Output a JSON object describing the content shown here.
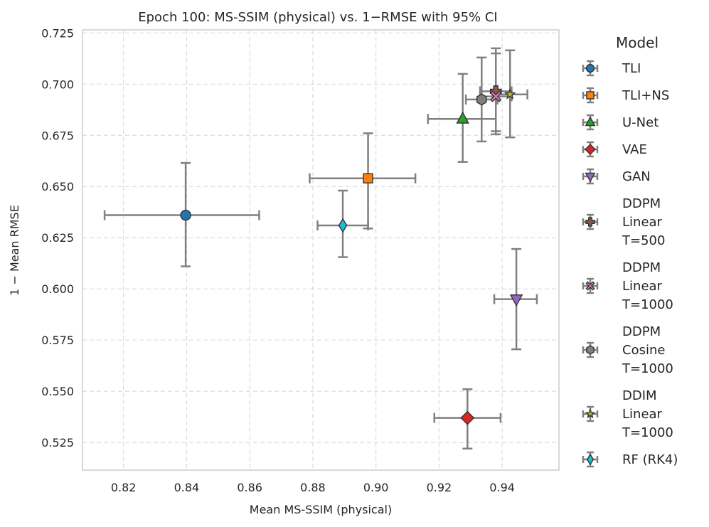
{
  "chart_data": {
    "type": "scatter",
    "title": "Epoch 100: MS-SSIM (physical) vs. 1−RMSE with 95% CI",
    "xlabel": "Mean MS-SSIM (physical)",
    "ylabel": "1 − Mean RMSE",
    "xlim": [
      0.807,
      0.958
    ],
    "ylim": [
      0.5115,
      0.7265
    ],
    "xticks": [
      0.82,
      0.84,
      0.86,
      0.88,
      0.9,
      0.92,
      0.94
    ],
    "xtick_labels": [
      "0.82",
      "0.84",
      "0.86",
      "0.88",
      "0.90",
      "0.92",
      "0.94"
    ],
    "yticks": [
      0.525,
      0.55,
      0.575,
      0.6,
      0.625,
      0.65,
      0.675,
      0.7,
      0.725
    ],
    "ytick_labels": [
      "0.525",
      "0.550",
      "0.575",
      "0.600",
      "0.625",
      "0.650",
      "0.675",
      "0.700",
      "0.725"
    ],
    "grid": true,
    "legend_title": "Model",
    "legend_position": "outside-right",
    "errorbar_color": "#808080",
    "series": [
      {
        "name": "TLI",
        "label_lines": [
          "TLI"
        ],
        "marker": "circle",
        "color": "#1f77b4",
        "x": 0.8397,
        "y": 0.636,
        "x_err": [
          0.814,
          0.863
        ],
        "y_err": [
          0.611,
          0.6615
        ]
      },
      {
        "name": "TLI+NS",
        "label_lines": [
          "TLI+NS"
        ],
        "marker": "square",
        "color": "#ff7f0e",
        "x": 0.8975,
        "y": 0.654,
        "x_err": [
          0.879,
          0.9125
        ],
        "y_err": [
          0.6295,
          0.676
        ]
      },
      {
        "name": "U-Net",
        "label_lines": [
          "U-Net"
        ],
        "marker": "triangle-up",
        "color": "#2ca02c",
        "x": 0.9275,
        "y": 0.683,
        "x_err": [
          0.9165,
          0.938
        ],
        "y_err": [
          0.662,
          0.705
        ]
      },
      {
        "name": "VAE",
        "label_lines": [
          "VAE"
        ],
        "marker": "diamond",
        "color": "#d62728",
        "x": 0.929,
        "y": 0.537,
        "x_err": [
          0.9185,
          0.9395
        ],
        "y_err": [
          0.522,
          0.551
        ]
      },
      {
        "name": "GAN",
        "label_lines": [
          "GAN"
        ],
        "marker": "triangle-down",
        "color": "#9467bd",
        "x": 0.9445,
        "y": 0.595,
        "x_err": [
          0.9375,
          0.951
        ],
        "y_err": [
          0.5705,
          0.6195
        ]
      },
      {
        "name": "DDPM Linear T=500",
        "label_lines": [
          "DDPM",
          "Linear",
          "T=500"
        ],
        "marker": "plus",
        "color": "#8c564b",
        "x": 0.938,
        "y": 0.6965,
        "x_err": [
          0.933,
          0.943
        ],
        "y_err": [
          0.677,
          0.7175
        ]
      },
      {
        "name": "DDPM Linear T=1000",
        "label_lines": [
          "DDPM",
          "Linear",
          "T=1000"
        ],
        "marker": "x",
        "color": "#e377c2",
        "x": 0.938,
        "y": 0.694,
        "x_err": [
          0.9335,
          0.943
        ],
        "y_err": [
          0.6755,
          0.715
        ]
      },
      {
        "name": "DDPM Cosine T=1000",
        "label_lines": [
          "DDPM",
          "Cosine",
          "T=1000"
        ],
        "marker": "hexagon",
        "color": "#7f7f7f",
        "x": 0.9335,
        "y": 0.6925,
        "x_err": [
          0.9285,
          0.9385
        ],
        "y_err": [
          0.672,
          0.713
        ]
      },
      {
        "name": "DDIM Linear T=1000",
        "label_lines": [
          "DDIM",
          "Linear",
          "T=1000"
        ],
        "marker": "star",
        "color": "#bcbd22",
        "x": 0.9425,
        "y": 0.695,
        "x_err": [
          0.937,
          0.948
        ],
        "y_err": [
          0.674,
          0.7165
        ]
      },
      {
        "name": "RF (RK4)",
        "label_lines": [
          "RF (RK4)"
        ],
        "marker": "thin-diamond",
        "color": "#17becf",
        "x": 0.8895,
        "y": 0.631,
        "x_err": [
          0.8815,
          0.8975
        ],
        "y_err": [
          0.6155,
          0.648
        ]
      }
    ]
  }
}
